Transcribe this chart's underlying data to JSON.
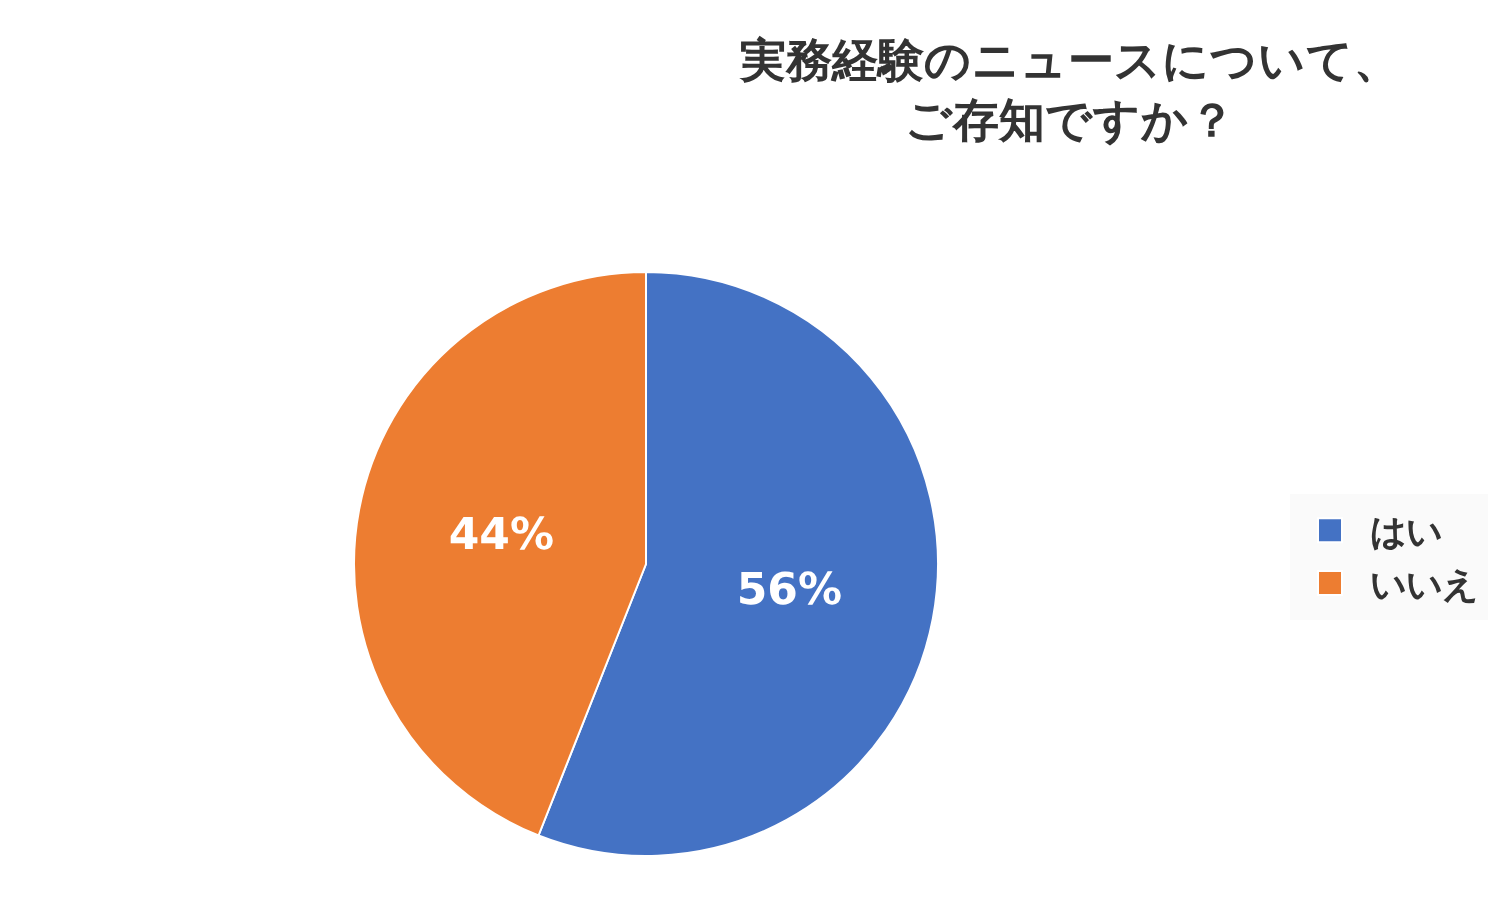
{
  "chart_data": {
    "type": "pie",
    "title": "実務経験のニュースについて、ご存知ですか？",
    "categories": [
      "はい",
      "いいえ"
    ],
    "values": [
      56,
      44
    ],
    "colors": [
      "#4472c4",
      "#ed7d31"
    ],
    "value_labels": [
      "56%",
      "44%"
    ],
    "legend": "right"
  }
}
